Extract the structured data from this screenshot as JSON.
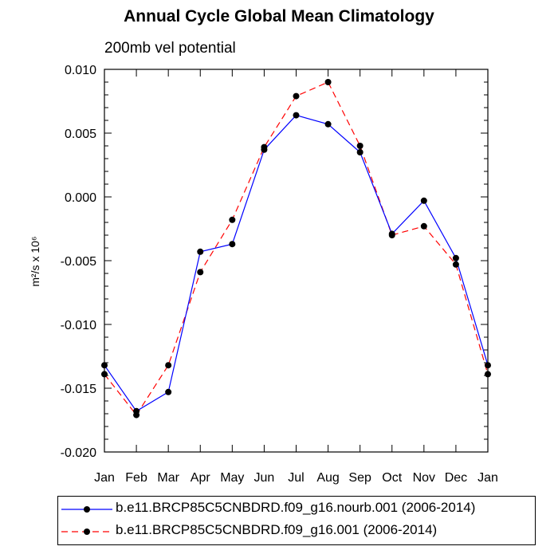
{
  "chart_data": {
    "type": "line",
    "title": "Annual Cycle Global Mean Climatology",
    "subtitle": "200mb vel potential",
    "xlabel": "",
    "ylabel": "m²/s x 10⁶",
    "categories": [
      "Jan",
      "Feb",
      "Mar",
      "Apr",
      "May",
      "Jun",
      "Jul",
      "Aug",
      "Sep",
      "Oct",
      "Nov",
      "Dec",
      "Jan"
    ],
    "ylim": [
      -0.02,
      0.01
    ],
    "yticks": [
      "0.010",
      "0.005",
      "0.000",
      "-0.005",
      "-0.010",
      "-0.015",
      "-0.020"
    ],
    "ytick_values": [
      0.01,
      0.005,
      0.0,
      -0.005,
      -0.01,
      -0.015,
      -0.02
    ],
    "series": [
      {
        "name": "b.e11.BRCP85C5CNBDRD.f09_g16.nourb.001 (2006-2014)",
        "color": "#0000ff",
        "dash": "solid",
        "values": [
          -0.0132,
          -0.0168,
          -0.0153,
          -0.0043,
          -0.0037,
          0.0037,
          0.0064,
          0.0057,
          0.0035,
          -0.0029,
          -0.0003,
          -0.0048,
          -0.0132
        ]
      },
      {
        "name": "b.e11.BRCP85C5CNBDRD.f09_g16.001 (2006-2014)",
        "color": "#ff0000",
        "dash": "dashed",
        "values": [
          -0.0139,
          -0.0171,
          -0.0132,
          -0.0059,
          -0.0018,
          0.0039,
          0.0079,
          0.009,
          0.004,
          -0.003,
          -0.0023,
          -0.0053,
          -0.0139
        ]
      }
    ],
    "legend_position": "bottom"
  }
}
